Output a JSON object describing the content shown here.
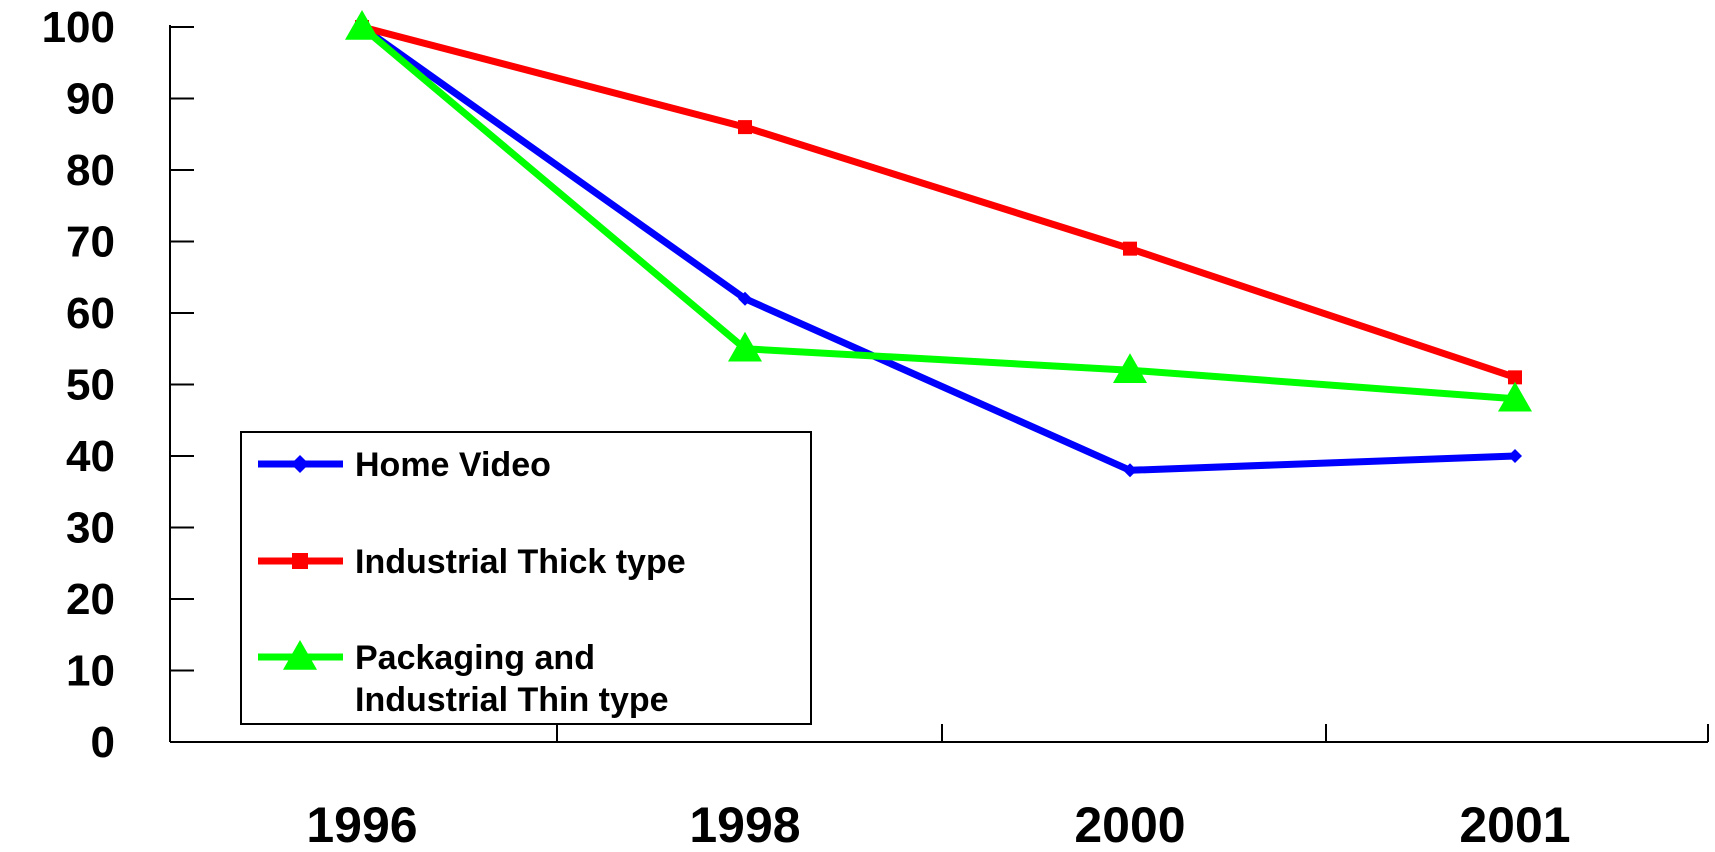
{
  "chart_data": {
    "type": "line",
    "categories": [
      "1996",
      "1998",
      "2000",
      "2001"
    ],
    "ylim": [
      0,
      100
    ],
    "yticks": [
      "0",
      "10",
      "20",
      "30",
      "40",
      "50",
      "60",
      "70",
      "80",
      "90",
      "100"
    ],
    "grid": false,
    "legend_position": "bottom-left",
    "series": [
      {
        "name": "Home Video",
        "values": [
          100,
          62,
          38,
          40
        ],
        "color": "#0000ff",
        "marker": "diamond"
      },
      {
        "name": "Industrial Thick type",
        "values": [
          100,
          86,
          69,
          51
        ],
        "color": "#ff0000",
        "marker": "square"
      },
      {
        "name": "Packaging and Industrial Thin type",
        "name_lines": [
          "Packaging and",
          "Industrial Thin type"
        ],
        "values": [
          100,
          55,
          52,
          48
        ],
        "color": "#00ff00",
        "marker": "triangle"
      }
    ]
  }
}
